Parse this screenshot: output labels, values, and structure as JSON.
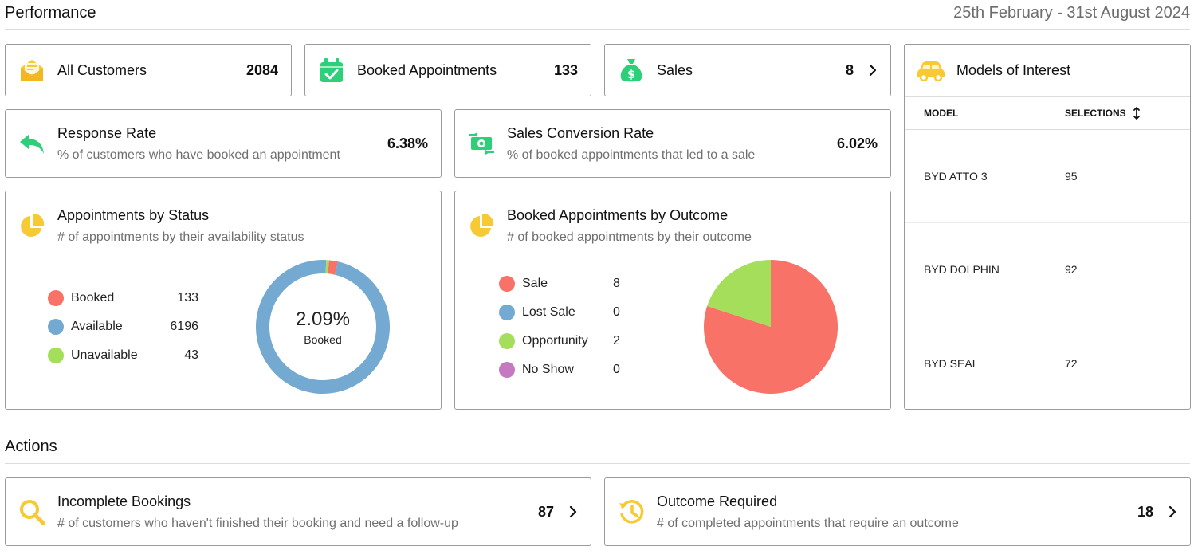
{
  "performance": {
    "title": "Performance",
    "date_range": "25th February - 31st August 2024"
  },
  "stats": {
    "all_customers": {
      "label": "All Customers",
      "value": "2084",
      "icon": "mail-icon"
    },
    "booked_appointments": {
      "label": "Booked Appointments",
      "value": "133",
      "icon": "calendar-check-icon"
    },
    "sales": {
      "label": "Sales",
      "value": "8",
      "icon": "money-bag-icon"
    }
  },
  "rates": {
    "response": {
      "title": "Response Rate",
      "subtitle": "% of customers who have booked an appointment",
      "value": "6.38%"
    },
    "conversion": {
      "title": "Sales Conversion Rate",
      "subtitle": "% of booked appointments that led to a sale",
      "value": "6.02%"
    }
  },
  "status_chart": {
    "title": "Appointments by Status",
    "subtitle": "# of appointments by their availability status",
    "center_value": "2.09%",
    "center_label": "Booked",
    "legend": [
      {
        "label": "Booked",
        "value": "133",
        "color": "#f87268"
      },
      {
        "label": "Available",
        "value": "6196",
        "color": "#74a9d1"
      },
      {
        "label": "Unavailable",
        "value": "43",
        "color": "#a4de5a"
      }
    ]
  },
  "outcome_chart": {
    "title": "Booked Appointments by Outcome",
    "subtitle": "# of booked appointments by their outcome",
    "legend": [
      {
        "label": "Sale",
        "value": "8",
        "color": "#f87268"
      },
      {
        "label": "Lost Sale",
        "value": "0",
        "color": "#74a9d1"
      },
      {
        "label": "Opportunity",
        "value": "2",
        "color": "#a4de5a"
      },
      {
        "label": "No Show",
        "value": "0",
        "color": "#c479c0"
      }
    ]
  },
  "chart_data": [
    {
      "type": "pie",
      "variant": "donut",
      "title": "Appointments by Status",
      "categories": [
        "Booked",
        "Available",
        "Unavailable"
      ],
      "values": [
        133,
        6196,
        43
      ],
      "colors": [
        "#f87268",
        "#74a9d1",
        "#a4de5a"
      ]
    },
    {
      "type": "pie",
      "title": "Booked Appointments by Outcome",
      "categories": [
        "Sale",
        "Lost Sale",
        "Opportunity",
        "No Show"
      ],
      "values": [
        8,
        0,
        2,
        0
      ],
      "colors": [
        "#f87268",
        "#74a9d1",
        "#a4de5a",
        "#c479c0"
      ]
    }
  ],
  "models": {
    "title": "Models of Interest",
    "columns": [
      "MODEL",
      "SELECTIONS"
    ],
    "rows": [
      {
        "model": "BYD ATTO 3",
        "selections": "95"
      },
      {
        "model": "BYD DOLPHIN",
        "selections": "92"
      },
      {
        "model": "BYD SEAL",
        "selections": "72"
      }
    ]
  },
  "actions": {
    "title": "Actions",
    "incomplete": {
      "title": "Incomplete Bookings",
      "subtitle": "# of customers who haven't finished their booking and need a follow-up",
      "value": "87"
    },
    "outcome": {
      "title": "Outcome Required",
      "subtitle": "# of completed appointments that require an outcome",
      "value": "18"
    }
  },
  "colors": {
    "yellow": "#f7c933",
    "green": "#2ecf79",
    "border": "#9a9a9a"
  }
}
